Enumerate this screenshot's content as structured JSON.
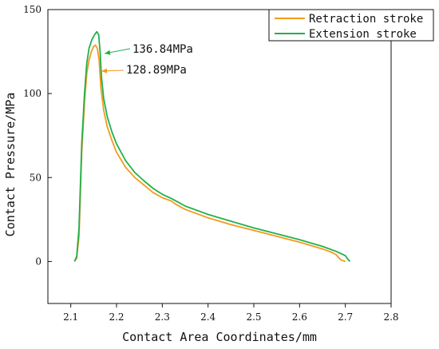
{
  "chart_data": {
    "type": "line",
    "xlabel": "Contact Area Coordinates/mm",
    "ylabel": "Contact Pressure/MPa",
    "xlim": [
      2.05,
      2.8
    ],
    "ylim": [
      -25,
      150
    ],
    "xticks": [
      2.1,
      2.2,
      2.3,
      2.4,
      2.5,
      2.6,
      2.7,
      2.8
    ],
    "yticks": [
      0,
      50,
      100,
      150
    ],
    "xtick_labels": [
      "2.1",
      "2.2",
      "2.3",
      "2.4",
      "2.5",
      "2.6",
      "2.7",
      "2.8"
    ],
    "ytick_labels": [
      "0",
      "50",
      "100",
      "150"
    ],
    "grid": false,
    "legend_position": "top-right",
    "series": [
      {
        "name": "Retraction stroke",
        "color": "#F39A1E",
        "x": [
          2.108,
          2.113,
          2.118,
          2.124,
          2.13,
          2.135,
          2.14,
          2.145,
          2.15,
          2.154,
          2.158,
          2.162,
          2.166,
          2.172,
          2.18,
          2.19,
          2.2,
          2.22,
          2.24,
          2.26,
          2.28,
          2.3,
          2.32,
          2.33,
          2.35,
          2.4,
          2.45,
          2.5,
          2.55,
          2.6,
          2.65,
          2.67,
          2.68,
          2.69,
          2.7
        ],
        "y": [
          0,
          2,
          15,
          65,
          95,
          112,
          120,
          125,
          128,
          128.89,
          127,
          120,
          103,
          90,
          80,
          72,
          65,
          56,
          50,
          45.5,
          41,
          38,
          36,
          34,
          31,
          26,
          22,
          18.5,
          15,
          11.5,
          7.5,
          5.5,
          4,
          1,
          0
        ]
      },
      {
        "name": "Extension stroke",
        "color": "#22B04B",
        "x": [
          2.108,
          2.113,
          2.118,
          2.124,
          2.13,
          2.135,
          2.14,
          2.146,
          2.152,
          2.157,
          2.161,
          2.164,
          2.167,
          2.172,
          2.18,
          2.19,
          2.2,
          2.22,
          2.24,
          2.26,
          2.28,
          2.3,
          2.32,
          2.33,
          2.35,
          2.4,
          2.45,
          2.5,
          2.55,
          2.6,
          2.65,
          2.68,
          2.7,
          2.705,
          2.71
        ],
        "y": [
          0,
          3,
          20,
          70,
          100,
          118,
          127,
          132,
          135,
          136.84,
          135,
          125,
          110,
          97,
          86,
          77,
          70,
          60,
          53,
          48,
          43.5,
          40,
          37.5,
          36,
          33,
          28,
          24,
          20,
          16.5,
          13,
          9,
          6,
          3.5,
          1.5,
          0
        ]
      }
    ],
    "annotations": [
      {
        "text": "136.84MPa",
        "x": 2.157,
        "y": 136.84,
        "color": "#22B04B"
      },
      {
        "text": "128.89MPa",
        "x": 2.154,
        "y": 128.89,
        "color": "#F39A1E"
      }
    ]
  }
}
